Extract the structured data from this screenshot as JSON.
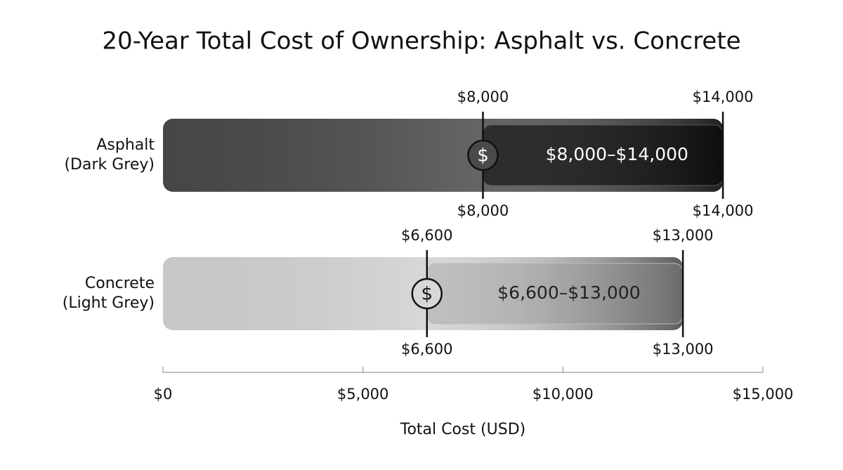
{
  "chart_data": {
    "type": "range-bar",
    "title": "20-Year Total Cost of Ownership: Asphalt vs. Concrete",
    "categories": [
      [
        "Asphalt",
        "(Dark Grey)"
      ],
      [
        "Concrete",
        "(Light Grey)"
      ]
    ],
    "low": [
      8000,
      6600
    ],
    "high": [
      14000,
      13000
    ],
    "low_labels": [
      "$8,000",
      "$6,600"
    ],
    "high_labels": [
      "$14,000",
      "$13,000"
    ],
    "range_labels": [
      "$8,000–$14,000",
      "$6,600–$13,000"
    ],
    "colors": [
      "#4a4a4a",
      "#d2d2d2"
    ],
    "marker_symbol": "$",
    "xlim": [
      0,
      15000
    ],
    "xticks": [
      {
        "value": 0,
        "label": "$0"
      },
      {
        "value": 5000,
        "label": "$5,000"
      },
      {
        "value": 10000,
        "label": "$10,000"
      },
      {
        "value": 15000,
        "label": "$15,000"
      }
    ],
    "xlabel": "Total Cost (USD)"
  }
}
